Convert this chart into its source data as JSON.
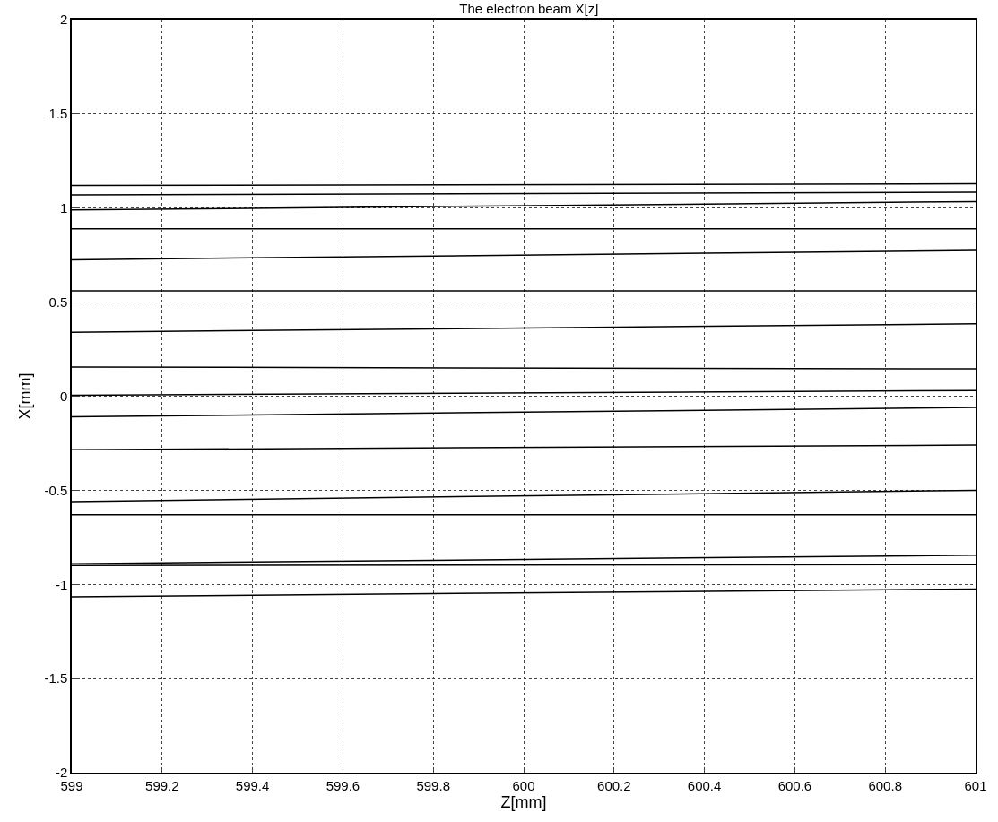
{
  "chart_data": {
    "type": "line",
    "title": "The electron beam X[z]",
    "xlabel": "Z[mm]",
    "ylabel": "X[mm]",
    "x": [
      599,
      601
    ],
    "series": [
      {
        "color": "#000000",
        "values": [
          1.12,
          1.13
        ]
      },
      {
        "color": "#000000",
        "values": [
          1.07,
          1.085
        ]
      },
      {
        "color": "#000000",
        "values": [
          0.99,
          1.035
        ]
      },
      {
        "color": "#000000",
        "values": [
          0.89,
          0.89
        ]
      },
      {
        "color": "#000000",
        "values": [
          0.725,
          0.775
        ]
      },
      {
        "color": "#000000",
        "values": [
          0.56,
          0.56
        ]
      },
      {
        "color": "#000000",
        "values": [
          0.34,
          0.385
        ]
      },
      {
        "color": "#000000",
        "values": [
          0.155,
          0.145
        ]
      },
      {
        "color": "#000000",
        "values": [
          0.005,
          0.03
        ]
      },
      {
        "color": "#000000",
        "values": [
          -0.11,
          -0.06
        ]
      },
      {
        "color": "#000000",
        "values": [
          -0.285,
          -0.26
        ]
      },
      {
        "color": "#000000",
        "values": [
          -0.56,
          -0.5
        ]
      },
      {
        "color": "#000000",
        "values": [
          -0.63,
          -0.63
        ]
      },
      {
        "color": "#000000",
        "values": [
          -0.89,
          -0.845
        ]
      },
      {
        "color": "#000000",
        "values": [
          -0.9,
          -0.895
        ]
      },
      {
        "color": "#000000",
        "values": [
          -1.065,
          -1.025
        ]
      }
    ],
    "xlim": [
      599,
      601
    ],
    "xticks": [
      599,
      599.2,
      599.4,
      599.6,
      599.8,
      600,
      600.2,
      600.4,
      600.6,
      600.8,
      601
    ],
    "ylim": [
      -2,
      2
    ],
    "yticks": [
      -2,
      -1.5,
      -1,
      -0.5,
      0,
      0.5,
      1,
      1.5,
      2
    ],
    "grid": true,
    "marker": "none",
    "line_style": "solid"
  }
}
